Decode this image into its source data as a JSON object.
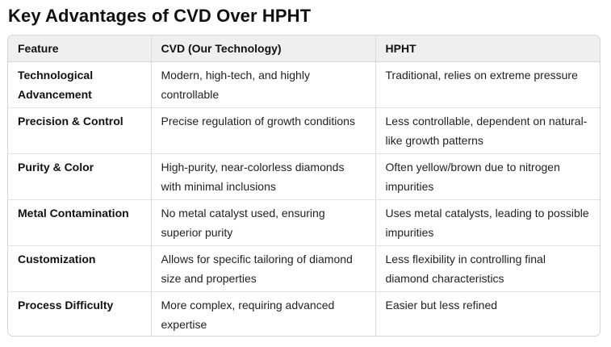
{
  "title": "Key Advantages of CVD Over HPHT",
  "table": {
    "headers": [
      "Feature",
      "CVD (Our Technology)",
      "HPHT"
    ],
    "rows": [
      [
        "Technological Advancement",
        "Modern, high-tech, and highly controllable",
        "Traditional, relies on extreme pressure"
      ],
      [
        "Precision & Control",
        "Precise regulation of growth conditions",
        "Less controllable, dependent on natural-like growth patterns"
      ],
      [
        "Purity & Color",
        "High-purity, near-colorless diamonds with minimal inclusions",
        "Often yellow/brown due to nitrogen impurities"
      ],
      [
        "Metal Contamination",
        "No metal catalyst used, ensuring superior purity",
        "Uses metal catalysts, leading to possible impurities"
      ],
      [
        "Customization",
        "Allows for specific tailoring of diamond size and properties",
        "Less flexibility in controlling final diamond characteristics"
      ],
      [
        "Process Difficulty",
        "More complex, requiring advanced expertise",
        "Easier but less refined"
      ]
    ]
  }
}
